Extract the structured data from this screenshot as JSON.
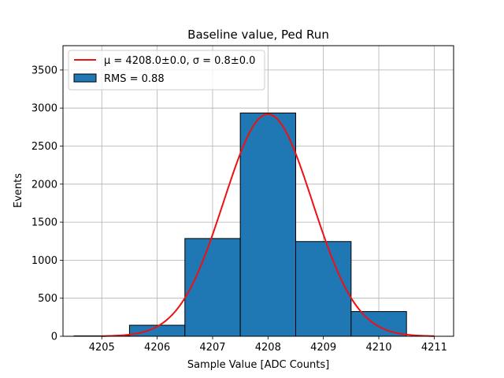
{
  "chart_data": {
    "type": "bar",
    "title": "Baseline value, Ped Run",
    "xlabel": "Sample Value [ADC Counts]",
    "ylabel": "Events",
    "xlim": [
      4204.3,
      4211.35
    ],
    "ylim": [
      0,
      3820
    ],
    "grid": true,
    "xticks": [
      4205,
      4206,
      4207,
      4208,
      4209,
      4210,
      4211
    ],
    "yticks": [
      0,
      500,
      1000,
      1500,
      2000,
      2500,
      3000,
      3500
    ],
    "histogram": {
      "name": "RMS = 0.88",
      "color": "#1f77b4",
      "bin_edges": [
        4204.5,
        4205.5,
        4206.5,
        4207.5,
        4208.5,
        4209.5,
        4210.5
      ],
      "counts": [
        5,
        145,
        1285,
        2935,
        1245,
        325
      ]
    },
    "fit": {
      "type": "gaussian",
      "color": "#ee1111",
      "mu": 4208.0,
      "sigma": 0.8,
      "amplitude": 2920,
      "x_range": [
        4205.0,
        4211.0
      ]
    },
    "legend": {
      "location": "upper-left",
      "fit_prefix": "μ = 4208.0±0.0, ",
      "fit_suffix": "σ = 0.8±0.0",
      "hist_label": "RMS = 0.88"
    }
  }
}
